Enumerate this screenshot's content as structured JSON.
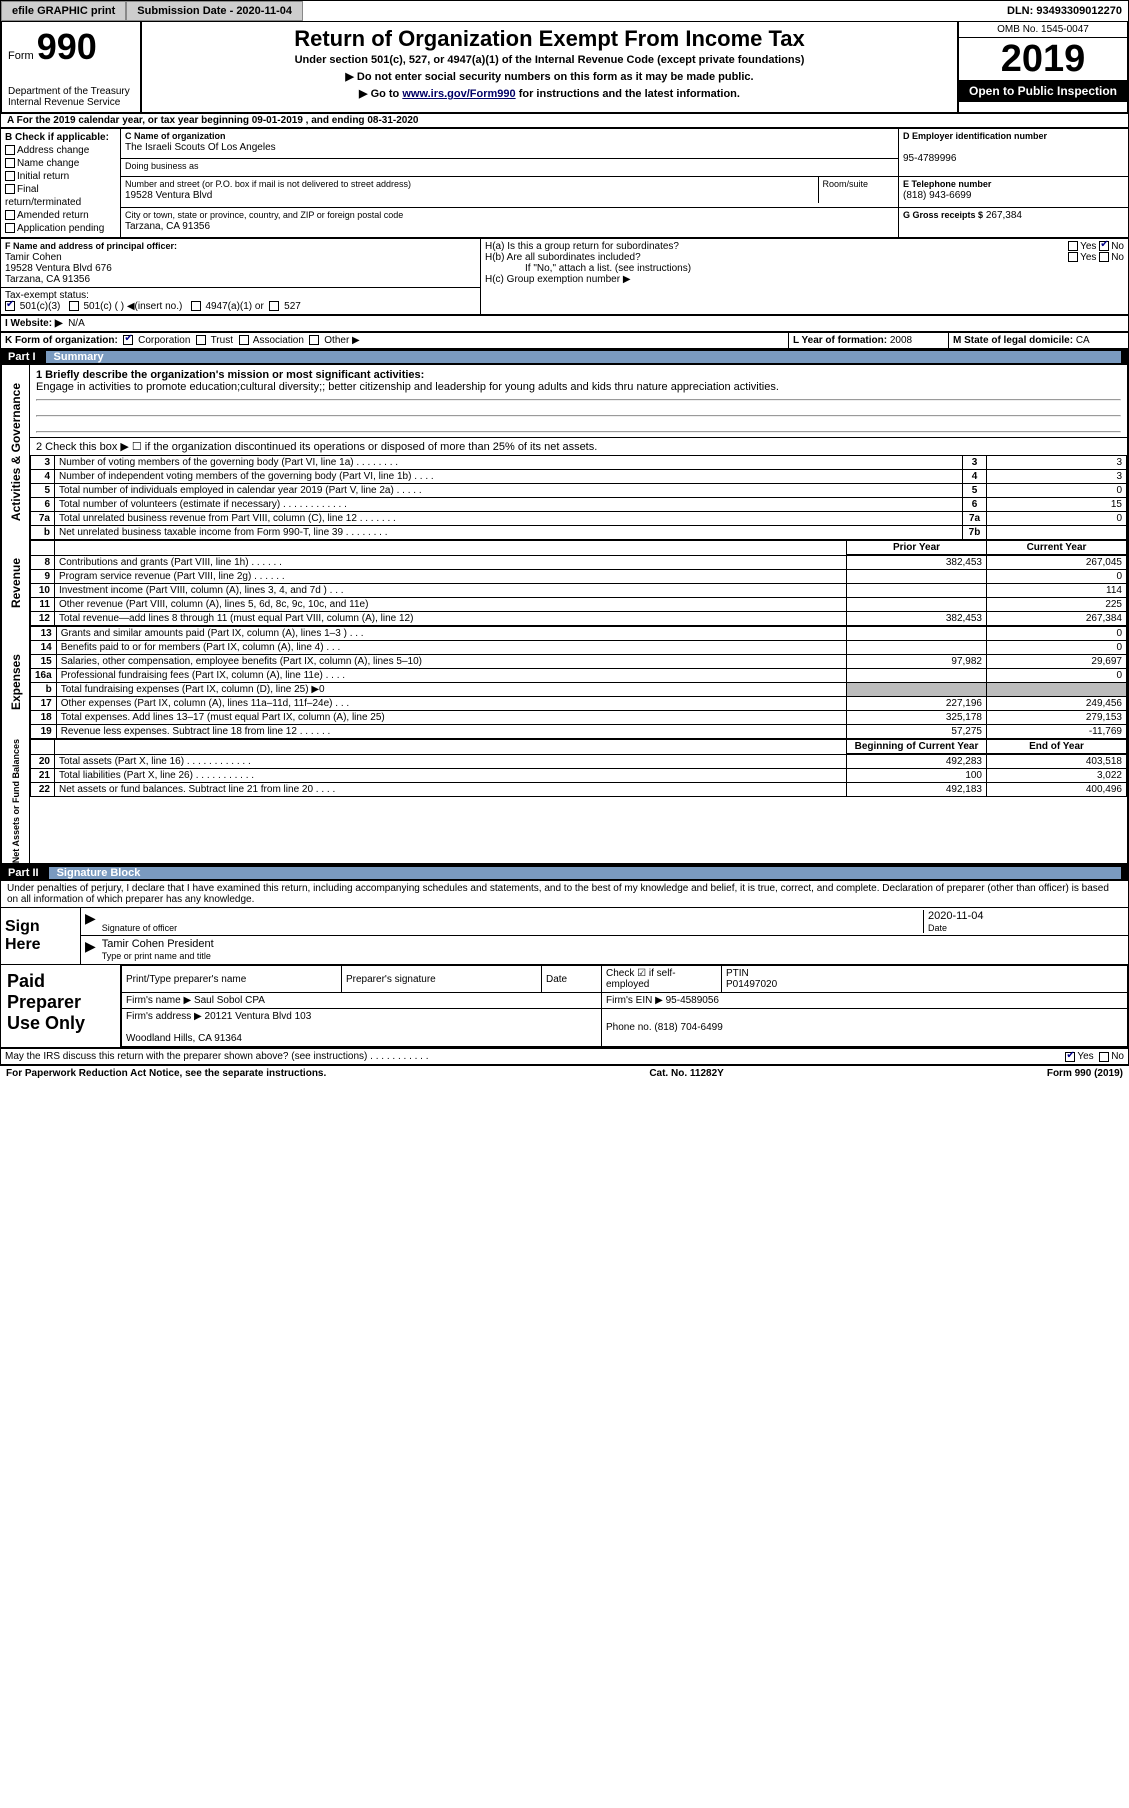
{
  "topbar": {
    "efile": "efile GRAPHIC print",
    "sub_label": "Submission Date - 2020-11-04",
    "dln": "DLN: 93493309012270"
  },
  "header": {
    "form": "Form",
    "form_num": "990",
    "dept": "Department of the Treasury\nInternal Revenue Service",
    "title": "Return of Organization Exempt From Income Tax",
    "subtitle": "Under section 501(c), 527, or 4947(a)(1) of the Internal Revenue Code (except private foundations)",
    "note1": "▶ Do not enter social security numbers on this form as it may be made public.",
    "note2_pre": "▶ Go to ",
    "note2_link": "www.irs.gov/Form990",
    "note2_post": " for instructions and the latest information.",
    "omb": "OMB No. 1545-0047",
    "year": "2019",
    "inspect": "Open to Public Inspection"
  },
  "line_a": "A For the 2019 calendar year, or tax year beginning 09-01-2019   , and ending 08-31-2020",
  "block_b": {
    "title": "B Check if applicable:",
    "items": [
      "Address change",
      "Name change",
      "Initial return",
      "Final return/terminated",
      "Amended return",
      "Application pending"
    ]
  },
  "block_c": {
    "label": "C Name of organization",
    "name": "The Israeli Scouts Of Los Angeles",
    "dba_label": "Doing business as",
    "addr_label": "Number and street (or P.O. box if mail is not delivered to street address)",
    "room": "Room/suite",
    "addr": "19528 Ventura Blvd",
    "city_label": "City or town, state or province, country, and ZIP or foreign postal code",
    "city": "Tarzana, CA  91356"
  },
  "block_d": {
    "label": "D Employer identification number",
    "val": "95-4789996"
  },
  "block_e": {
    "label": "E Telephone number",
    "val": "(818) 943-6699"
  },
  "block_g": {
    "label": "G Gross receipts $",
    "val": "267,384"
  },
  "block_f": {
    "label": "F  Name and address of principal officer:",
    "name": "Tamir Cohen",
    "addr": "19528 Ventura Blvd 676\nTarzana, CA  91356"
  },
  "block_h": {
    "a": "H(a)  Is this a group return for subordinates?",
    "b": "H(b)  Are all subordinates included?",
    "note": "If \"No,\" attach a list. (see instructions)",
    "c": "H(c)  Group exemption number ▶"
  },
  "tax_status": "Tax-exempt status:",
  "tax_opts": [
    "501(c)(3)",
    "501(c) (  ) ◀(insert no.)",
    "4947(a)(1) or",
    "527"
  ],
  "website_i": "I  Website: ▶",
  "website_v": "N/A",
  "k": "K Form of organization:",
  "k_opts": [
    "Corporation",
    "Trust",
    "Association",
    "Other ▶"
  ],
  "l": {
    "label": "L Year of formation:",
    "val": "2008"
  },
  "m": {
    "label": "M State of legal domicile:",
    "val": "CA"
  },
  "part1": {
    "label": "Part I",
    "title": "Summary"
  },
  "mission_label": "1  Briefly describe the organization's mission or most significant activities:",
  "mission": "Engage in activities to promote education;cultural diversity;; better citizenship and leadership for young adults and kids thru nature appreciation activities.",
  "line2": "2    Check this box ▶ ☐  if the organization discontinued its operations or disposed of more than 25% of its net assets.",
  "gov_lines": [
    {
      "n": "3",
      "d": "Number of voting members of the governing body (Part VI, line 1a)  .   .   .   .   .   .   .   .",
      "b": "3",
      "v": "3"
    },
    {
      "n": "4",
      "d": "Number of independent voting members of the governing body (Part VI, line 1b)  .   .   .   .",
      "b": "4",
      "v": "3"
    },
    {
      "n": "5",
      "d": "Total number of individuals employed in calendar year 2019 (Part V, line 2a)  .   .   .   .   .",
      "b": "5",
      "v": "0"
    },
    {
      "n": "6",
      "d": "Total number of volunteers (estimate if necessary)   .   .   .   .   .   .   .   .   .   .   .   .",
      "b": "6",
      "v": "15"
    },
    {
      "n": "7a",
      "d": "Total unrelated business revenue from Part VIII, column (C), line 12  .   .   .   .   .   .   .",
      "b": "7a",
      "v": "0"
    },
    {
      "n": "b",
      "d": "Net unrelated business taxable income from Form 990-T, line 39   .   .   .   .   .   .   .   .",
      "b": "7b",
      "v": ""
    }
  ],
  "col_headers": {
    "prior": "Prior Year",
    "curr": "Current Year"
  },
  "rev_lines": [
    {
      "n": "8",
      "d": "Contributions and grants (Part VIII, line 1h)   .   .   .   .   .   .",
      "p": "382,453",
      "c": "267,045"
    },
    {
      "n": "9",
      "d": "Program service revenue (Part VIII, line 2g)   .   .   .   .   .   .",
      "p": "",
      "c": "0"
    },
    {
      "n": "10",
      "d": "Investment income (Part VIII, column (A), lines 3, 4, and 7d )   .   .   .",
      "p": "",
      "c": "114"
    },
    {
      "n": "11",
      "d": "Other revenue (Part VIII, column (A), lines 5, 6d, 8c, 9c, 10c, and 11e)",
      "p": "",
      "c": "225"
    },
    {
      "n": "12",
      "d": "Total revenue—add lines 8 through 11 (must equal Part VIII, column (A), line 12)",
      "p": "382,453",
      "c": "267,384"
    }
  ],
  "exp_lines": [
    {
      "n": "13",
      "d": "Grants and similar amounts paid (Part IX, column (A), lines 1–3 )  .   .   .",
      "p": "",
      "c": "0"
    },
    {
      "n": "14",
      "d": "Benefits paid to or for members (Part IX, column (A), line 4)   .   .   .",
      "p": "",
      "c": "0"
    },
    {
      "n": "15",
      "d": "Salaries, other compensation, employee benefits (Part IX, column (A), lines 5–10)",
      "p": "97,982",
      "c": "29,697"
    },
    {
      "n": "16a",
      "d": "Professional fundraising fees (Part IX, column (A), line 11e)  .   .   .   .",
      "p": "",
      "c": "0"
    },
    {
      "n": "b",
      "d": "Total fundraising expenses (Part IX, column (D), line 25) ▶0",
      "p": "grey",
      "c": "grey"
    },
    {
      "n": "17",
      "d": "Other expenses (Part IX, column (A), lines 11a–11d, 11f–24e)   .   .   .",
      "p": "227,196",
      "c": "249,456"
    },
    {
      "n": "18",
      "d": "Total expenses. Add lines 13–17 (must equal Part IX, column (A), line 25)",
      "p": "325,178",
      "c": "279,153"
    },
    {
      "n": "19",
      "d": "Revenue less expenses. Subtract line 18 from line 12 .   .   .   .   .   .",
      "p": "57,275",
      "c": "-11,769"
    }
  ],
  "na_headers": {
    "beg": "Beginning of Current Year",
    "end": "End of Year"
  },
  "na_lines": [
    {
      "n": "20",
      "d": "Total assets (Part X, line 16)  .   .   .   .   .   .   .   .   .   .   .   .",
      "p": "492,283",
      "c": "403,518"
    },
    {
      "n": "21",
      "d": "Total liabilities (Part X, line 26)  .   .   .   .   .   .   .   .   .   .   .",
      "p": "100",
      "c": "3,022"
    },
    {
      "n": "22",
      "d": "Net assets or fund balances. Subtract line 21 from line 20   .   .   .   .",
      "p": "492,183",
      "c": "400,496"
    }
  ],
  "part2": {
    "label": "Part II",
    "title": "Signature Block"
  },
  "penalty": "Under penalties of perjury, I declare that I have examined this return, including accompanying schedules and statements, and to the best of my knowledge and belief, it is true, correct, and complete. Declaration of preparer (other than officer) is based on all information of which preparer has any knowledge.",
  "sign": {
    "here": "Sign Here",
    "sig_label": "Signature of officer",
    "date_label": "Date",
    "date": "2020-11-04",
    "name": "Tamir Cohen  President",
    "name_label": "Type or print name and title"
  },
  "prep": {
    "left": "Paid Preparer Use Only",
    "h": [
      "Print/Type preparer's name",
      "Preparer's signature",
      "Date"
    ],
    "check": "Check ☑ if self-employed",
    "ptin_l": "PTIN",
    "ptin": "P01497020",
    "firm_l": "Firm's name    ▶",
    "firm": "Saul Sobol CPA",
    "ein_l": "Firm's EIN ▶",
    "ein": "95-4589056",
    "addr_l": "Firm's address ▶",
    "addr": "20121 Ventura Blvd 103\n\nWoodland Hills, CA  91364",
    "phone_l": "Phone no.",
    "phone": "(818) 704-6499"
  },
  "discuss": "May the IRS discuss this return with the preparer shown above? (see instructions)   .   .   .   .   .   .   .   .   .   .   .",
  "footer": {
    "left": "For Paperwork Reduction Act Notice, see the separate instructions.",
    "mid": "Cat. No. 11282Y",
    "right": "Form 990 (2019)"
  },
  "vlabels": {
    "gov": "Activities & Governance",
    "rev": "Revenue",
    "exp": "Expenses",
    "na": "Net Assets or Fund Balances"
  }
}
